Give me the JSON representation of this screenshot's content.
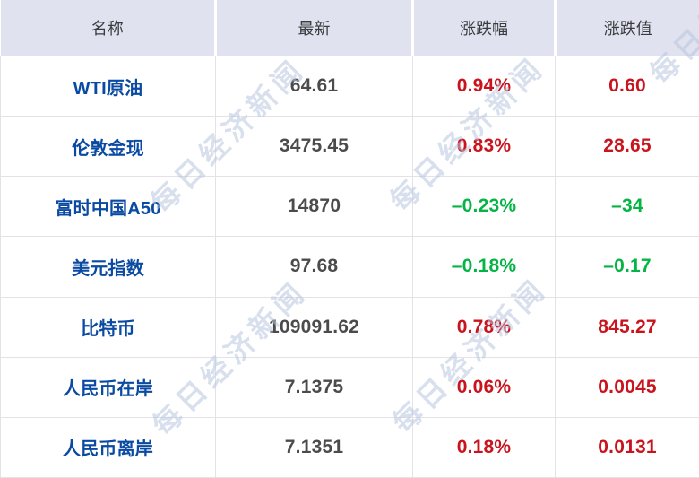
{
  "table": {
    "headers": [
      "名称",
      "最新",
      "涨跌幅",
      "涨跌值"
    ],
    "rows": [
      {
        "name": "WTI原油",
        "latest": "64.61",
        "pct": "0.94%",
        "chg": "0.60",
        "direction": "up"
      },
      {
        "name": "伦敦金现",
        "latest": "3475.45",
        "pct": "0.83%",
        "chg": "28.65",
        "direction": "up"
      },
      {
        "name": "富时中国A50",
        "latest": "14870",
        "pct": "–0.23%",
        "chg": "–34",
        "direction": "down"
      },
      {
        "name": "美元指数",
        "latest": "97.68",
        "pct": "–0.18%",
        "chg": "–0.17",
        "direction": "down"
      },
      {
        "name": "比特币",
        "latest": "109091.62",
        "pct": "0.78%",
        "chg": "845.27",
        "direction": "up"
      },
      {
        "name": "人民币在岸",
        "latest": "7.1375",
        "pct": "0.06%",
        "chg": "0.0045",
        "direction": "up"
      },
      {
        "name": "人民币离岸",
        "latest": "7.1351",
        "pct": "0.18%",
        "chg": "0.0131",
        "direction": "up"
      }
    ]
  },
  "watermark": {
    "text": "每日经济新闻"
  },
  "colors": {
    "up": "#c9141d",
    "down": "#05b445",
    "name_blue": "#0a4aa2",
    "latest_gray": "#4b4b4b",
    "header_bg": "#e0e3ef",
    "grid_line": "#e3e3e7",
    "watermark": "#b8c4de"
  }
}
